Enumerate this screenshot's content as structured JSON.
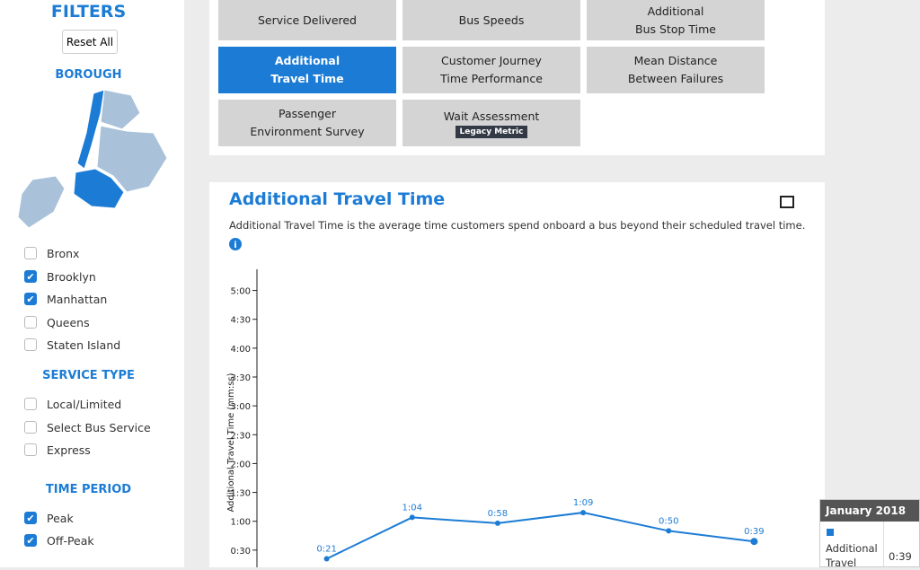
{
  "sidebar": {
    "title": "FILTERS",
    "reset": "Reset All",
    "borough_heading": "BOROUGH",
    "boroughs": [
      {
        "label": "Bronx",
        "checked": false
      },
      {
        "label": "Brooklyn",
        "checked": true
      },
      {
        "label": "Manhattan",
        "checked": true
      },
      {
        "label": "Queens",
        "checked": false
      },
      {
        "label": "Staten Island",
        "checked": false
      }
    ],
    "service_heading": "SERVICE TYPE",
    "service_types": [
      {
        "label": "Local/Limited",
        "checked": false
      },
      {
        "label": "Select Bus Service",
        "checked": false
      },
      {
        "label": "Express",
        "checked": false
      }
    ],
    "period_heading": "TIME PERIOD",
    "periods": [
      {
        "label": "Peak",
        "checked": true
      },
      {
        "label": "Off-Peak",
        "checked": true
      }
    ]
  },
  "metrics": [
    {
      "label": "Service Delivered",
      "active": false
    },
    {
      "label": "Bus Speeds",
      "active": false
    },
    {
      "label": "Additional\nBus Stop Time",
      "active": false
    },
    {
      "label": "Additional\nTravel Time",
      "active": true
    },
    {
      "label": "Customer Journey\nTime Performance",
      "active": false
    },
    {
      "label": "Mean Distance\nBetween Failures",
      "active": false
    },
    {
      "label": "Passenger\nEnvironment Survey",
      "active": false
    },
    {
      "label": "Wait Assessment",
      "active": false,
      "badge": "Legacy Metric"
    }
  ],
  "chart_data": {
    "type": "line",
    "title": "Additional Travel Time",
    "subtitle": "Additional Travel Time is the average time customers spend onboard a bus beyond their scheduled travel time.",
    "y_label": "Additional Travel Time (mm:ss)",
    "categories": [
      null,
      null,
      null,
      null,
      null,
      null
    ],
    "values": [
      21,
      64,
      58,
      69,
      50,
      39
    ],
    "value_labels": [
      "0:21",
      "1:04",
      "0:58",
      "1:09",
      "0:50",
      "0:39"
    ],
    "color": "#1c7cd5",
    "ylim": [
      0,
      322
    ],
    "yticks": [
      {
        "value": 30,
        "label": "0:30"
      },
      {
        "value": 60,
        "label": "1:00"
      },
      {
        "value": 90,
        "label": "1:30"
      },
      {
        "value": 120,
        "label": "2:00"
      },
      {
        "value": 150,
        "label": "2:30"
      },
      {
        "value": 180,
        "label": "3:00"
      },
      {
        "value": 210,
        "label": "3:30"
      },
      {
        "value": 240,
        "label": "4:00"
      },
      {
        "value": 270,
        "label": "4:30"
      },
      {
        "value": 300,
        "label": "5:00"
      }
    ]
  },
  "tooltip": {
    "title": "January 2018",
    "label": "Additional Travel",
    "value": "0:39"
  }
}
